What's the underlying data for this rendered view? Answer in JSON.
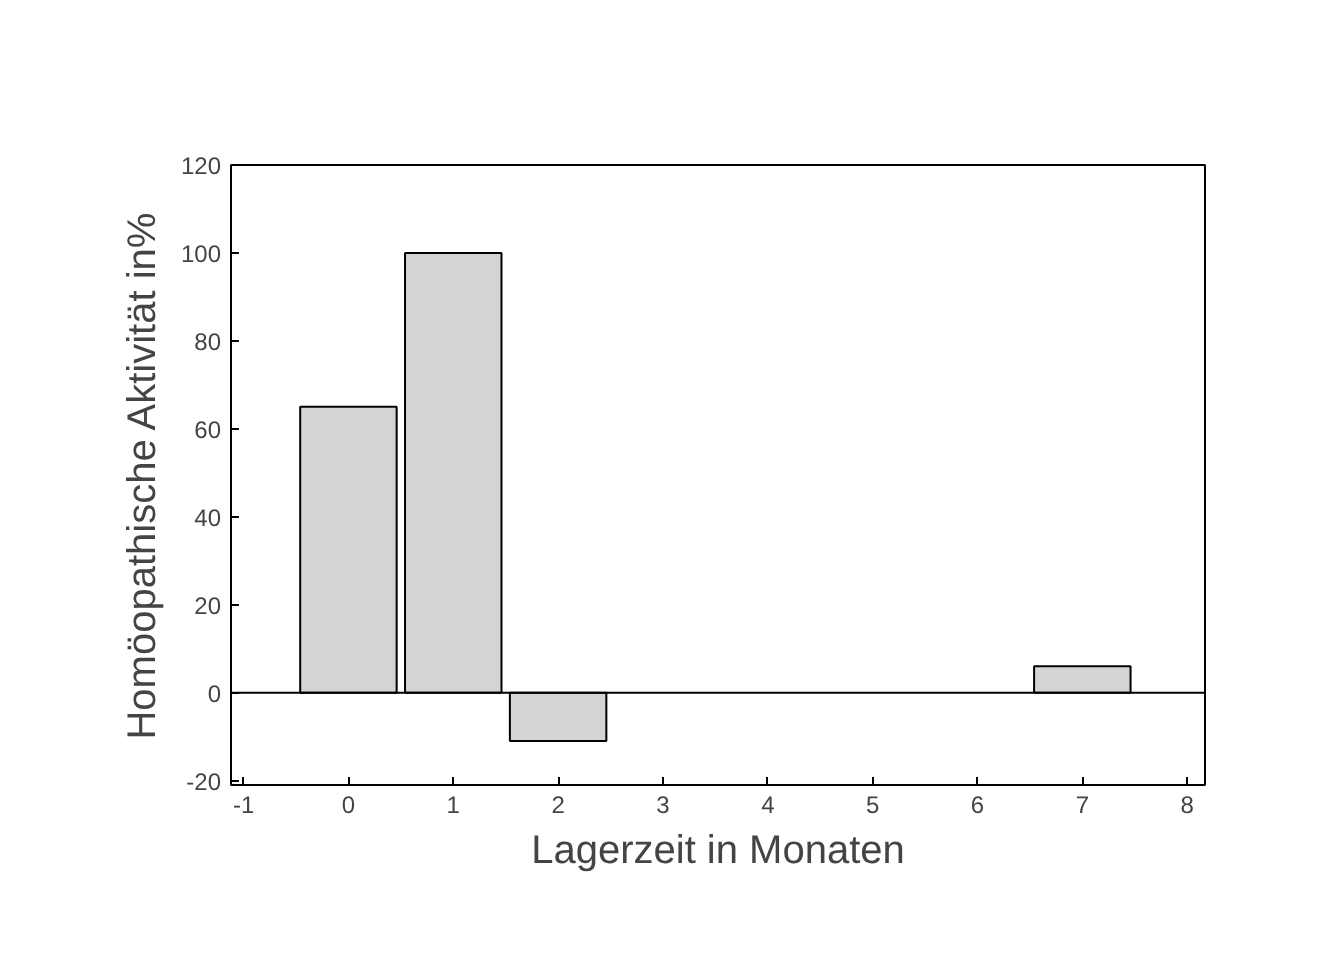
{
  "chart_data": {
    "type": "bar",
    "xlabel": "Lagerzeit in Monaten",
    "ylabel": "Homöopathische Aktivität in%",
    "x": [
      0,
      1,
      2,
      7
    ],
    "values": [
      65,
      100,
      -11,
      6
    ],
    "color": "#d4d4d4",
    "xlim": [
      -1.12,
      8.17
    ],
    "xticks": [
      {
        "value": -1,
        "label": "-1"
      },
      0,
      1,
      2,
      3,
      4,
      5,
      6,
      7,
      8
    ],
    "ylim": [
      -21,
      120
    ],
    "yticks": [
      {
        "value": -20,
        "label": "-20"
      },
      0,
      20,
      40,
      60,
      80,
      100,
      120
    ],
    "ref_lines": [
      {
        "axis": "y",
        "value": 0,
        "color": "#000000"
      }
    ]
  }
}
